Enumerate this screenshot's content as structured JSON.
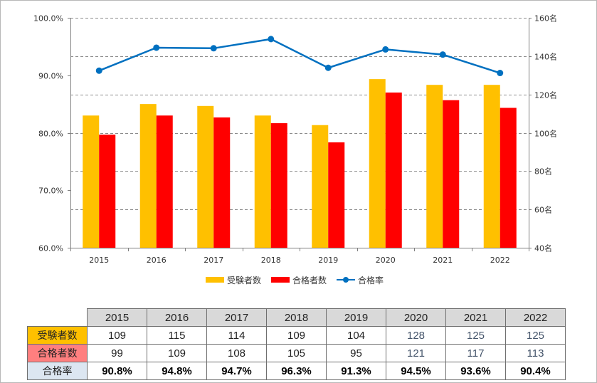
{
  "chart_data": {
    "type": "bar",
    "categories": [
      "2015",
      "2016",
      "2017",
      "2018",
      "2019",
      "2020",
      "2021",
      "2022"
    ],
    "series": [
      {
        "name": "受験者数",
        "kind": "bar",
        "axis": "right",
        "color": "#ffc000",
        "values": [
          109,
          115,
          114,
          109,
          104,
          128,
          125,
          125
        ]
      },
      {
        "name": "合格者数",
        "kind": "bar",
        "axis": "right",
        "color": "#ff0000",
        "values": [
          99,
          109,
          108,
          105,
          95,
          121,
          117,
          113
        ]
      },
      {
        "name": "合格率",
        "kind": "line",
        "axis": "left",
        "color": "#0070c0",
        "values": [
          90.8,
          94.8,
          94.7,
          96.3,
          91.3,
          94.5,
          93.6,
          90.4
        ]
      }
    ],
    "y_left": {
      "min": 60,
      "max": 100,
      "ticks": [
        60,
        70,
        80,
        90,
        100
      ],
      "tick_labels": [
        "60.0%",
        "70.0%",
        "80.0%",
        "90.0%",
        "100.0%"
      ]
    },
    "y_right": {
      "min": 40,
      "max": 160,
      "ticks": [
        40,
        60,
        80,
        100,
        120,
        140,
        160
      ],
      "tick_labels": [
        "40名",
        "60名",
        "80名",
        "100名",
        "120名",
        "140名",
        "160名"
      ]
    },
    "grid": "dashed horizontal",
    "legend_position": "bottom"
  },
  "legend": {
    "examinees": "受験者数",
    "passers": "合格者数",
    "rate": "合格率"
  },
  "table": {
    "years": [
      "2015",
      "2016",
      "2017",
      "2018",
      "2019",
      "2020",
      "2021",
      "2022"
    ],
    "rows": [
      {
        "label": "受験者数",
        "label_bg": "#ffc000",
        "values": [
          "109",
          "115",
          "114",
          "109",
          "104",
          "128",
          "125",
          "125"
        ]
      },
      {
        "label": "合格者数",
        "label_bg": "#ff7f7f",
        "values": [
          "99",
          "109",
          "108",
          "105",
          "95",
          "121",
          "117",
          "113"
        ]
      },
      {
        "label": "合格率",
        "label_bg": "#dce6f1",
        "values": [
          "90.8%",
          "94.8%",
          "94.7%",
          "96.3%",
          "91.3%",
          "94.5%",
          "93.6%",
          "90.4%"
        ]
      }
    ]
  }
}
